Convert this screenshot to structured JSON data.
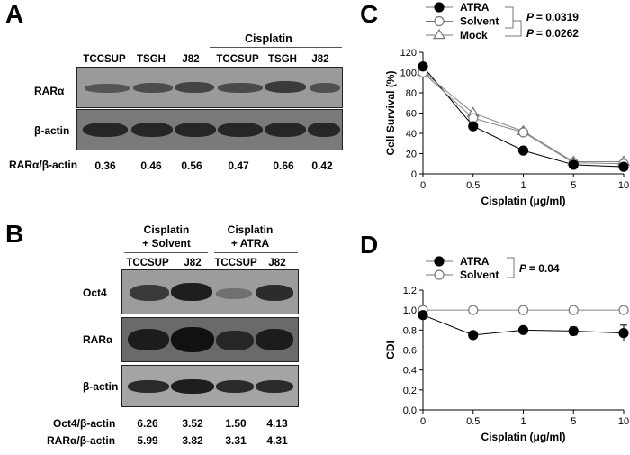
{
  "panelA": {
    "letter": "A",
    "group_label": "Cisplatin",
    "lanes": [
      "TCCSUP",
      "TSGH",
      "J82",
      "TCCSUP",
      "TSGH",
      "J82"
    ],
    "rows": [
      "RARα",
      "β-actin"
    ],
    "ratio_label": "RARα/β-actin",
    "ratios": [
      "0.36",
      "0.46",
      "0.56",
      "0.47",
      "0.66",
      "0.42"
    ]
  },
  "panelB": {
    "letter": "B",
    "group1_line1": "Cisplatin",
    "group1_line2": "+ Solvent",
    "group2_line1": "Cisplatin",
    "group2_line2": "+ ATRA",
    "lanes": [
      "TCCSUP",
      "J82",
      "TCCSUP",
      "J82"
    ],
    "rows": [
      "Oct4",
      "RARα",
      "β-actin"
    ],
    "ratio1_label": "Oct4/β-actin",
    "ratio1": [
      "6.26",
      "3.52",
      "1.50",
      "4.13"
    ],
    "ratio2_label": "RARα/β-actin",
    "ratio2": [
      "5.99",
      "3.82",
      "3.31",
      "4.31"
    ]
  },
  "panelC": {
    "letter": "C",
    "p1": "= 0.0319",
    "p2": "= 0.0262",
    "p_symbol": "P"
  },
  "panelD": {
    "letter": "D",
    "p1": "= 0.04",
    "p_symbol": "P"
  },
  "chart_data": [
    {
      "type": "line",
      "panel": "C",
      "x": [
        "0",
        "0.5",
        "1",
        "5",
        "10"
      ],
      "xlabel": "Cisplatin (μg/ml)",
      "ylabel": "Cell Survival (%)",
      "ylim": [
        0,
        120
      ],
      "yticks": [
        "0",
        "20",
        "40",
        "60",
        "80",
        "100",
        "120"
      ],
      "series": [
        {
          "name": "ATRA",
          "marker": "filled-circle",
          "values": [
            106,
            47,
            23,
            9,
            7
          ]
        },
        {
          "name": "Solvent",
          "marker": "open-circle",
          "values": [
            100,
            55,
            41,
            11,
            10
          ]
        },
        {
          "name": "Mock",
          "marker": "open-triangle",
          "values": [
            101,
            60,
            42,
            12,
            12
          ]
        }
      ],
      "legend": "top-left"
    },
    {
      "type": "line",
      "panel": "D",
      "x": [
        "0",
        "0.5",
        "1",
        "5",
        "10"
      ],
      "xlabel": "Cisplatin (μg/ml)",
      "ylabel": "CDI",
      "ylim": [
        0,
        1.2
      ],
      "yticks": [
        "0.0",
        "0.2",
        "0.4",
        "0.6",
        "0.8",
        "1.0",
        "1.2"
      ],
      "series": [
        {
          "name": "ATRA",
          "marker": "filled-circle",
          "values": [
            0.95,
            0.75,
            0.8,
            0.79,
            0.77
          ],
          "errors": [
            0.03,
            0.03,
            0.03,
            0.04,
            0.08
          ]
        },
        {
          "name": "Solvent",
          "marker": "open-circle",
          "values": [
            1.0,
            1.0,
            1.0,
            1.0,
            1.0
          ],
          "errors": [
            0.03,
            0.03,
            0.03,
            0.03,
            0.03
          ]
        }
      ],
      "legend": "top-left"
    }
  ]
}
